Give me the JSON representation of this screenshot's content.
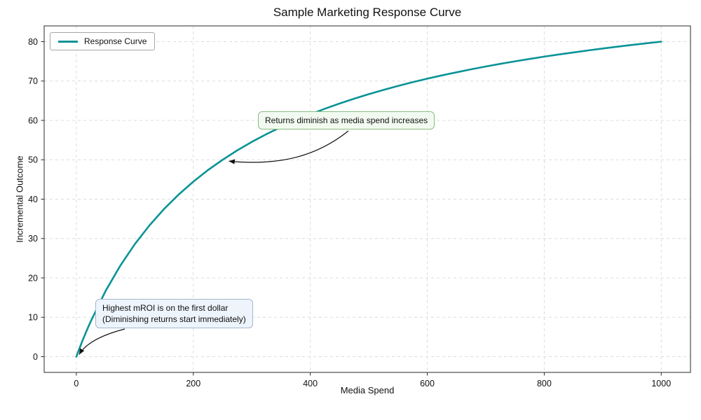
{
  "figure": {
    "title": "Sample Marketing Response Curve"
  },
  "chart_data": {
    "type": "line",
    "title": "Sample Marketing Response Curve",
    "xlabel": "Media Spend",
    "ylabel": "Incremental Outcome",
    "xlim": [
      -55,
      1050
    ],
    "ylim": [
      -4,
      84
    ],
    "xticks": [
      0,
      200,
      400,
      600,
      800,
      1000
    ],
    "yticks": [
      0,
      10,
      20,
      30,
      40,
      50,
      60,
      70,
      80
    ],
    "grid": true,
    "legend": {
      "position": "upper-left",
      "entries": [
        "Response Curve"
      ]
    },
    "series": [
      {
        "name": "Response Curve",
        "color": "#0a9396",
        "x": [
          0,
          5,
          10,
          15,
          20,
          25,
          50,
          75,
          100,
          125,
          150,
          175,
          200,
          225,
          250,
          275,
          300,
          325,
          350,
          375,
          400,
          425,
          450,
          475,
          500,
          525,
          550,
          575,
          600,
          625,
          650,
          675,
          700,
          725,
          750,
          775,
          800,
          825,
          850,
          875,
          900,
          925,
          950,
          975,
          1000
        ],
        "y": [
          0,
          1.96,
          3.85,
          5.66,
          7.41,
          9.09,
          16.67,
          23.08,
          28.57,
          33.33,
          37.5,
          41.18,
          44.44,
          47.37,
          50,
          52.38,
          54.55,
          56.52,
          58.33,
          60,
          61.54,
          62.96,
          64.29,
          65.52,
          66.67,
          67.74,
          68.75,
          69.7,
          70.59,
          71.43,
          72.22,
          72.97,
          73.68,
          74.36,
          75,
          75.61,
          76.19,
          76.74,
          77.27,
          77.78,
          78.26,
          78.72,
          79.17,
          79.59,
          80
        ]
      }
    ],
    "annotations": [
      {
        "text": "Returns diminish as media spend increases",
        "target_xy": [
          250,
          50
        ],
        "box_color": "#f2faf0",
        "border_color": "#8cba84",
        "arrow_color": "#111111"
      },
      {
        "text": "Highest mROI is on the first dollar\n(Diminishing returns start immediately)",
        "target_xy": [
          0,
          0
        ],
        "box_color": "#edf4fb",
        "border_color": "#a3b8cc",
        "arrow_color": "#111111"
      }
    ]
  }
}
